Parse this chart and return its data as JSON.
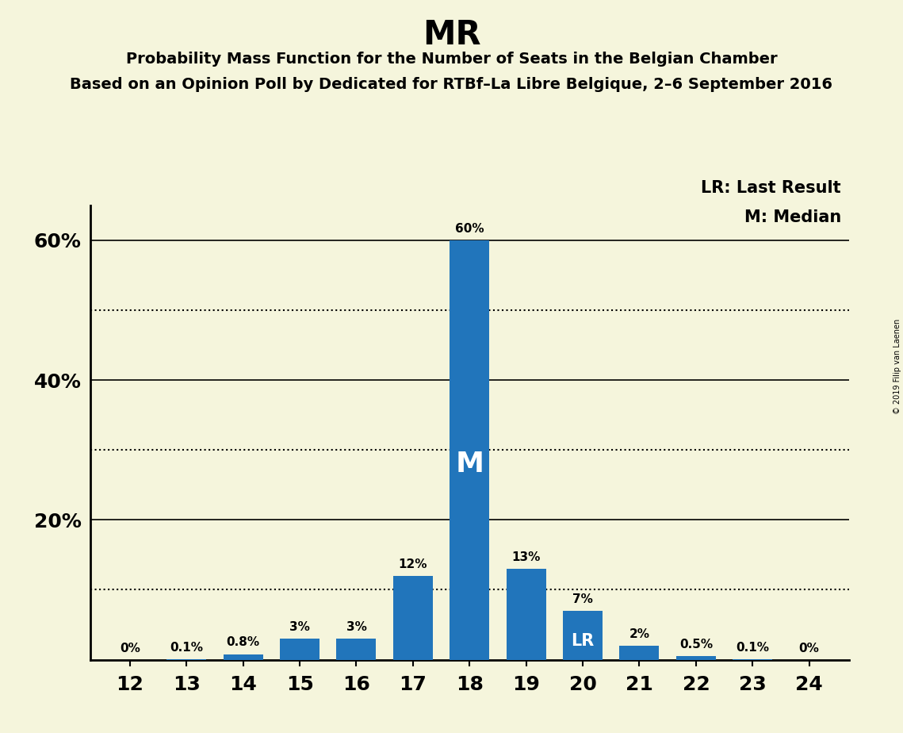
{
  "title": "MR",
  "subtitle1": "Probability Mass Function for the Number of Seats in the Belgian Chamber",
  "subtitle2": "Based on an Opinion Poll by Dedicated for RTBf–La Libre Belgique, 2–6 September 2016",
  "copyright": "© 2019 Filip van Laenen",
  "legend_lr": "LR: Last Result",
  "legend_m": "M: Median",
  "seats": [
    12,
    13,
    14,
    15,
    16,
    17,
    18,
    19,
    20,
    21,
    22,
    23,
    24
  ],
  "values": [
    0.0,
    0.1,
    0.8,
    3.0,
    3.0,
    12.0,
    60.0,
    13.0,
    7.0,
    2.0,
    0.5,
    0.1,
    0.0
  ],
  "labels": [
    "0%",
    "0.1%",
    "0.8%",
    "3%",
    "3%",
    "12%",
    "60%",
    "13%",
    "7%",
    "2%",
    "0.5%",
    "0.1%",
    "0%"
  ],
  "bar_color": "#2175bb",
  "median_seat": 18,
  "lr_seat": 20,
  "background_color": "#f5f5dc",
  "ylim": [
    0,
    65
  ],
  "yticks": [
    0,
    20,
    40,
    60
  ],
  "ytick_labels": [
    "",
    "20%",
    "40%",
    "60%"
  ],
  "dotted_lines": [
    10,
    30,
    50
  ],
  "solid_lines": [
    20,
    40,
    60
  ]
}
